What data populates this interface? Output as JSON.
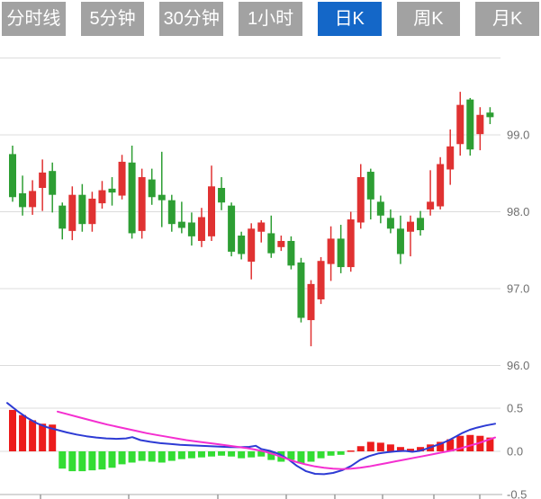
{
  "tabbar": {
    "tabs": [
      {
        "id": "time-line",
        "label": "分时线",
        "active": false
      },
      {
        "id": "5min",
        "label": "5分钟",
        "active": false
      },
      {
        "id": "30min",
        "label": "30分钟",
        "active": false
      },
      {
        "id": "1hour",
        "label": "1小时",
        "active": false
      },
      {
        "id": "daily-k",
        "label": "日K",
        "active": true
      },
      {
        "id": "weekly-k",
        "label": "周K",
        "active": false
      },
      {
        "id": "monthly-k",
        "label": "月K",
        "active": false
      }
    ],
    "active_bg": "#1467c8",
    "inactive_bg": "#a2a2a2",
    "text_color": "#ffffff"
  },
  "colors": {
    "candle_up": "#e03232",
    "candle_down": "#2d9e33",
    "macd_bar_positive": "#ec1c1c",
    "macd_bar_negative": "#33dd33",
    "dif_line": "#2d3bd4",
    "dea_line": "#f42fd0",
    "gridline": "#dcdcdc",
    "axis_line": "#c8c8c8",
    "tick": "#9a9a9a",
    "label_text": "#6f6f6f",
    "background": "#ffffff"
  },
  "chart_data": {
    "type": "candlestick",
    "title": "",
    "legend": "none",
    "grid": "horizontal-only",
    "price_pane": {
      "ylim": [
        95.8,
        100.0
      ],
      "y_axis_labels": [
        {
          "value": 99.0,
          "text": "99.0"
        },
        {
          "value": 98.0,
          "text": "98.0"
        },
        {
          "value": 97.0,
          "text": "97.0"
        },
        {
          "value": 96.0,
          "text": "96.0"
        }
      ],
      "unlabeled_gridlines": [
        100.0
      ],
      "candles_ochl": [
        [
          98.75,
          98.19,
          98.86,
          98.13
        ],
        [
          98.24,
          98.06,
          98.47,
          97.95
        ],
        [
          98.06,
          98.27,
          98.41,
          97.96
        ],
        [
          98.31,
          98.51,
          98.68,
          98.01
        ],
        [
          98.53,
          98.22,
          98.64,
          97.99
        ],
        [
          98.08,
          97.78,
          98.12,
          97.64
        ],
        [
          97.75,
          98.22,
          98.33,
          97.63
        ],
        [
          98.22,
          97.84,
          98.36,
          97.74
        ],
        [
          97.84,
          98.17,
          98.26,
          97.74
        ],
        [
          98.11,
          98.28,
          98.4,
          98.04
        ],
        [
          98.3,
          98.25,
          98.45,
          98.08
        ],
        [
          98.21,
          98.65,
          98.74,
          98.16
        ],
        [
          98.64,
          97.72,
          98.86,
          97.65
        ],
        [
          97.75,
          98.45,
          98.56,
          97.65
        ],
        [
          98.42,
          98.19,
          98.56,
          98.09
        ],
        [
          98.22,
          98.15,
          98.78,
          97.8
        ],
        [
          98.15,
          97.84,
          98.22,
          97.74
        ],
        [
          97.87,
          97.79,
          98.13,
          97.72
        ],
        [
          97.86,
          97.68,
          97.99,
          97.56
        ],
        [
          97.62,
          97.93,
          98.05,
          97.54
        ],
        [
          97.68,
          98.33,
          98.6,
          97.62
        ],
        [
          98.31,
          98.12,
          98.45,
          98.02
        ],
        [
          98.08,
          97.48,
          98.12,
          97.42
        ],
        [
          97.69,
          97.45,
          97.74,
          97.38
        ],
        [
          97.35,
          97.78,
          97.85,
          97.12
        ],
        [
          97.74,
          97.86,
          97.89,
          97.6
        ],
        [
          97.72,
          97.46,
          97.95,
          97.4
        ],
        [
          97.54,
          97.62,
          97.69,
          97.49
        ],
        [
          97.62,
          97.3,
          97.68,
          97.25
        ],
        [
          97.34,
          96.62,
          97.4,
          96.56
        ],
        [
          96.59,
          97.06,
          97.11,
          96.25
        ],
        [
          96.86,
          97.36,
          97.41,
          96.8
        ],
        [
          97.32,
          97.65,
          97.81,
          97.1
        ],
        [
          97.65,
          97.28,
          97.83,
          97.2
        ],
        [
          97.28,
          97.9,
          98.0,
          97.22
        ],
        [
          97.86,
          98.45,
          98.62,
          97.78
        ],
        [
          98.52,
          98.16,
          98.56,
          97.9
        ],
        [
          98.13,
          97.95,
          98.21,
          97.85
        ],
        [
          97.92,
          97.78,
          98.03,
          97.72
        ],
        [
          97.78,
          97.45,
          97.95,
          97.32
        ],
        [
          97.74,
          97.87,
          97.95,
          97.42
        ],
        [
          97.92,
          97.76,
          98.01,
          97.69
        ],
        [
          98.03,
          98.13,
          98.54,
          97.95
        ],
        [
          98.07,
          98.62,
          98.71,
          98.03
        ],
        [
          98.55,
          98.85,
          99.07,
          98.35
        ],
        [
          98.88,
          99.39,
          99.56,
          98.73
        ],
        [
          99.46,
          98.81,
          99.48,
          98.73
        ],
        [
          99.01,
          99.26,
          99.36,
          98.8
        ],
        [
          99.29,
          99.23,
          99.36,
          99.14
        ]
      ]
    },
    "macd_pane": {
      "ylim": [
        -0.55,
        0.55
      ],
      "y_axis_labels": [
        {
          "value": 0.5,
          "text": "0.5"
        },
        {
          "value": 0.0,
          "text": "0.0"
        },
        {
          "value": -0.5,
          "text": "-0.5"
        }
      ],
      "histogram": [
        0.48,
        0.42,
        0.36,
        0.32,
        0.31,
        -0.2,
        -0.23,
        -0.23,
        -0.22,
        -0.21,
        -0.19,
        -0.15,
        -0.13,
        -0.11,
        -0.12,
        -0.13,
        -0.11,
        -0.09,
        -0.08,
        -0.07,
        -0.06,
        -0.05,
        -0.06,
        -0.08,
        -0.07,
        -0.06,
        -0.1,
        -0.12,
        -0.1,
        -0.14,
        -0.12,
        -0.08,
        -0.05,
        -0.04,
        0.01,
        0.06,
        0.11,
        0.1,
        0.08,
        0.05,
        0.03,
        0.05,
        0.08,
        0.11,
        0.14,
        0.18,
        0.19,
        0.18,
        0.16
      ],
      "dif_line": [
        [
          8,
          0.56
        ],
        [
          19,
          0.47
        ],
        [
          30,
          0.39
        ],
        [
          41,
          0.325
        ],
        [
          52,
          0.28
        ],
        [
          63,
          0.25
        ],
        [
          74,
          0.22
        ],
        [
          85,
          0.195
        ],
        [
          96,
          0.175
        ],
        [
          107,
          0.16
        ],
        [
          118,
          0.15
        ],
        [
          129,
          0.145
        ],
        [
          140,
          0.15
        ],
        [
          147,
          0.165
        ],
        [
          156,
          0.13
        ],
        [
          167,
          0.11
        ],
        [
          178,
          0.095
        ],
        [
          189,
          0.085
        ],
        [
          200,
          0.075
        ],
        [
          211,
          0.07
        ],
        [
          222,
          0.065
        ],
        [
          233,
          0.06
        ],
        [
          244,
          0.055
        ],
        [
          255,
          0.05
        ],
        [
          266,
          0.048
        ],
        [
          277,
          0.052
        ],
        [
          284,
          0.065
        ],
        [
          290,
          0.028
        ],
        [
          300,
          0.005
        ],
        [
          310,
          -0.03
        ],
        [
          320,
          -0.09
        ],
        [
          330,
          -0.17
        ],
        [
          340,
          -0.23
        ],
        [
          350,
          -0.26
        ],
        [
          360,
          -0.265
        ],
        [
          370,
          -0.25
        ],
        [
          380,
          -0.22
        ],
        [
          390,
          -0.17
        ],
        [
          400,
          -0.1
        ],
        [
          410,
          -0.055
        ],
        [
          420,
          -0.025
        ],
        [
          430,
          -0.01
        ],
        [
          440,
          0.0
        ],
        [
          450,
          0.005
        ],
        [
          458,
          -0.005
        ],
        [
          466,
          0.005
        ],
        [
          474,
          0.03
        ],
        [
          482,
          0.06
        ],
        [
          490,
          0.09
        ],
        [
          498,
          0.125
        ],
        [
          506,
          0.17
        ],
        [
          514,
          0.215
        ],
        [
          522,
          0.25
        ],
        [
          530,
          0.275
        ],
        [
          540,
          0.3
        ],
        [
          550,
          0.32
        ]
      ],
      "dea_line": [
        [
          64,
          0.46
        ],
        [
          75,
          0.43
        ],
        [
          86,
          0.4
        ],
        [
          97,
          0.37
        ],
        [
          108,
          0.34
        ],
        [
          119,
          0.31
        ],
        [
          130,
          0.285
        ],
        [
          141,
          0.26
        ],
        [
          152,
          0.235
        ],
        [
          163,
          0.21
        ],
        [
          174,
          0.19
        ],
        [
          185,
          0.17
        ],
        [
          196,
          0.15
        ],
        [
          207,
          0.13
        ],
        [
          218,
          0.115
        ],
        [
          229,
          0.1
        ],
        [
          240,
          0.085
        ],
        [
          251,
          0.07
        ],
        [
          262,
          0.055
        ],
        [
          273,
          0.04
        ],
        [
          284,
          0.02
        ],
        [
          295,
          -0.005
        ],
        [
          306,
          -0.04
        ],
        [
          317,
          -0.08
        ],
        [
          328,
          -0.12
        ],
        [
          339,
          -0.15
        ],
        [
          350,
          -0.175
        ],
        [
          360,
          -0.19
        ],
        [
          370,
          -0.2
        ],
        [
          380,
          -0.205
        ],
        [
          390,
          -0.2
        ],
        [
          400,
          -0.19
        ],
        [
          410,
          -0.175
        ],
        [
          420,
          -0.155
        ],
        [
          430,
          -0.135
        ],
        [
          440,
          -0.115
        ],
        [
          450,
          -0.095
        ],
        [
          460,
          -0.075
        ],
        [
          470,
          -0.055
        ],
        [
          480,
          -0.035
        ],
        [
          490,
          -0.015
        ],
        [
          500,
          0.005
        ],
        [
          510,
          0.03
        ],
        [
          520,
          0.06
        ],
        [
          530,
          0.09
        ],
        [
          540,
          0.125
        ],
        [
          550,
          0.16
        ]
      ]
    },
    "x_axis": {
      "tick_positions": [
        45,
        143,
        242,
        318,
        372,
        425,
        482,
        533
      ],
      "labels_visible": false
    }
  }
}
